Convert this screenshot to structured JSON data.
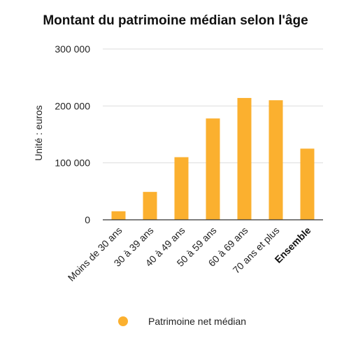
{
  "chart_data": {
    "type": "bar",
    "title": "Montant du patrimoine médian selon l'âge",
    "ylabel": "Unité : euros",
    "xlabel": "",
    "categories": [
      "Moins de 30 ans",
      "30 à 39 ans",
      "40 à 49 ans",
      "50 à 59 ans",
      "60 à 69 ans",
      "70 ans et plus",
      "Ensemble"
    ],
    "highlighted_category": "Ensemble",
    "series": [
      {
        "name": "Patrimoine net médian",
        "values": [
          15000,
          49000,
          110000,
          178000,
          214000,
          210000,
          125000
        ]
      }
    ],
    "ylim": [
      0,
      300000
    ],
    "yticks": [
      0,
      100000,
      200000,
      300000
    ],
    "ytick_labels": [
      "0",
      "100 000",
      "200 000",
      "300 000"
    ],
    "grid": true,
    "legend_position": "bottom",
    "color": "#FBB02F"
  }
}
